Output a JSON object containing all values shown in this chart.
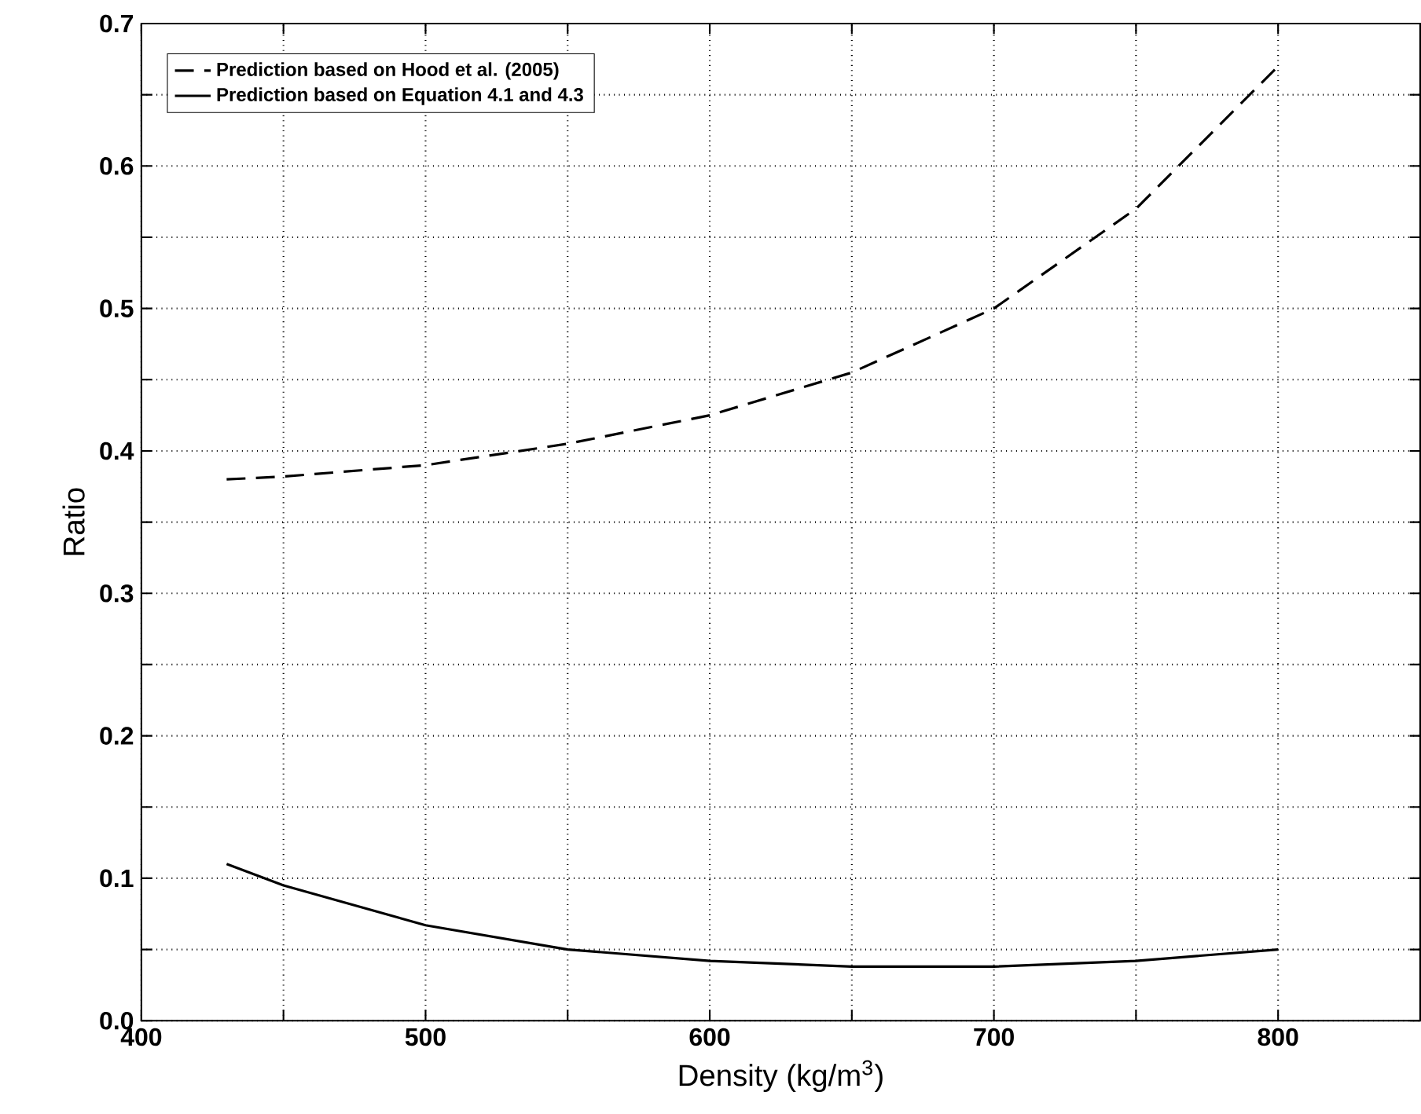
{
  "chart_data": {
    "type": "line",
    "xlabel": "Density (kg/m$^{3}$)",
    "ylabel": "Ratio",
    "xlim": [
      400,
      850
    ],
    "ylim": [
      0,
      0.7
    ],
    "xticks": [
      400,
      {
        "value": 450,
        "label": null
      },
      500,
      {
        "value": 550,
        "label": null
      },
      600,
      {
        "value": 650,
        "label": null
      },
      700,
      {
        "value": 750,
        "label": null
      },
      800
    ],
    "yticks": [
      {
        "value": 0,
        "label": "0.0"
      },
      {
        "value": 0.05,
        "label": null
      },
      0.1,
      {
        "value": 0.15,
        "label": null
      },
      0.2,
      {
        "value": 0.25,
        "label": null
      },
      0.3,
      {
        "value": 0.35,
        "label": null
      },
      0.4,
      {
        "value": 0.45,
        "label": null
      },
      0.5,
      {
        "value": 0.55,
        "label": null
      },
      0.6,
      {
        "value": 0.65,
        "label": null
      },
      0.7
    ],
    "grid": true,
    "legend": "top left",
    "marker": "none",
    "series": [
      {
        "name": "Prediction based on Hood et al. (2005)",
        "color": "#000000",
        "line_style": "dashed",
        "x": [
          430,
          450,
          500,
          550,
          600,
          650,
          700,
          750,
          800
        ],
        "values": [
          0.38,
          0.382,
          0.39,
          0.405,
          0.425,
          0.455,
          0.5,
          0.57,
          0.67
        ]
      },
      {
        "name": "Prediction based on Equation 4.1 and 4.3",
        "color": "#000000",
        "line_style": "solid",
        "x": [
          430,
          450,
          500,
          550,
          600,
          650,
          700,
          750,
          800
        ],
        "values": [
          0.11,
          0.095,
          0.067,
          0.05,
          0.042,
          0.038,
          0.038,
          0.042,
          0.05
        ]
      }
    ]
  }
}
